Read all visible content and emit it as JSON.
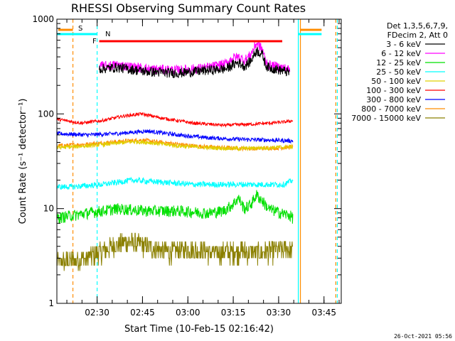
{
  "chart_data": {
    "type": "line",
    "title": "RHESSI Observing Summary Count Rates",
    "xlabel": "Start Time (10-Feb-15 02:16:42)",
    "ylabel": "Count Rate (s⁻¹ detector⁻¹)",
    "yscale": "log",
    "ylim": [
      1,
      1000
    ],
    "xlim_minutes": [
      0,
      94
    ],
    "x_tick_labels": [
      "02:30",
      "02:45",
      "03:00",
      "03:15",
      "03:30",
      "03:45"
    ],
    "x_ticks_minutes": [
      13.3,
      28.3,
      43.3,
      58.3,
      73.3,
      88.3
    ],
    "y_tick_labels": [
      "1",
      "10",
      "100",
      "1000"
    ],
    "y_ticks": [
      1,
      10,
      100,
      1000
    ],
    "grid": false,
    "legend_position": "right",
    "legend_header": [
      "Det 1,3,5,6,7,9,",
      "FDecim 2, Att 0"
    ],
    "timestamp": "26-Oct-2021 05:56",
    "data_window_minutes": [
      14,
      77
    ],
    "series": [
      {
        "name": "3 - 6 keV",
        "color": "#000000",
        "t": [
          14,
          20,
          30,
          40,
          50,
          56,
          58,
          60,
          62,
          64,
          66,
          68,
          69,
          70,
          72,
          74,
          76,
          77
        ],
        "values": [
          300,
          310,
          280,
          270,
          290,
          300,
          330,
          350,
          320,
          360,
          470,
          420,
          330,
          310,
          300,
          290,
          280,
          270
        ]
      },
      {
        "name": "6 - 12 keV",
        "color": "#ff00ff",
        "t": [
          14,
          20,
          30,
          40,
          50,
          56,
          58,
          60,
          62,
          64,
          66,
          68,
          69,
          70,
          72,
          74,
          76,
          77
        ],
        "values": [
          320,
          330,
          300,
          290,
          310,
          340,
          390,
          400,
          370,
          420,
          560,
          480,
          360,
          330,
          320,
          310,
          300,
          290
        ]
      },
      {
        "name": "12 - 25 keV",
        "color": "#00e000",
        "t": [
          0,
          10,
          20,
          30,
          40,
          50,
          55,
          58,
          60,
          62,
          64,
          66,
          68,
          70,
          74,
          77,
          78
        ],
        "values": [
          8,
          9,
          10,
          9.5,
          9.5,
          9,
          9.5,
          11,
          13,
          10,
          11,
          14,
          12,
          10,
          9,
          8.5,
          8
        ]
      },
      {
        "name": "25 - 50 keV",
        "color": "#00ffff",
        "t": [
          0,
          5,
          15,
          25,
          35,
          45,
          55,
          65,
          75,
          78
        ],
        "values": [
          17,
          17,
          18,
          20,
          19,
          18,
          18,
          18,
          18,
          20
        ]
      },
      {
        "name": "50 - 100 keV",
        "color": "#e0d000",
        "t": [
          0,
          10,
          20,
          25,
          30,
          40,
          50,
          60,
          70,
          78
        ],
        "values": [
          44,
          46,
          49,
          51,
          50,
          46,
          44,
          43,
          44,
          45
        ]
      },
      {
        "name": "100 - 300 keV",
        "color": "#ff0000",
        "t": [
          0,
          8,
          15,
          22,
          28,
          35,
          45,
          55,
          65,
          75,
          78
        ],
        "values": [
          88,
          80,
          85,
          95,
          100,
          90,
          80,
          76,
          78,
          82,
          85
        ]
      },
      {
        "name": "300 - 800 keV",
        "color": "#0000ff",
        "t": [
          0,
          10,
          20,
          30,
          40,
          50,
          60,
          70,
          78
        ],
        "values": [
          62,
          60,
          62,
          66,
          60,
          56,
          54,
          53,
          52
        ]
      },
      {
        "name": "800 - 7000 keV",
        "color": "#ff8c00",
        "t": [
          0,
          10,
          20,
          28,
          35,
          45,
          55,
          65,
          75,
          78
        ],
        "values": [
          46,
          48,
          51,
          53,
          50,
          46,
          44,
          43,
          44,
          45
        ]
      },
      {
        "name": "7000 - 15000 keV",
        "color": "#8b8000",
        "t": [
          0,
          10,
          18,
          24,
          30,
          36,
          44,
          52,
          60,
          68,
          76,
          78
        ],
        "values": [
          2.7,
          3,
          4,
          4.5,
          4,
          3.5,
          3.8,
          3.4,
          3.6,
          3.5,
          3.8,
          3.5
        ]
      }
    ],
    "annotations": [
      {
        "label": "S",
        "color": "#ff8c00",
        "t": [
          0,
          5.3
        ]
      },
      {
        "label": "N",
        "color": "#00ffff",
        "t": [
          0,
          13.3
        ]
      },
      {
        "label": "F",
        "color": "#ff0000",
        "t": [
          14,
          74.5
        ]
      }
    ],
    "right_flags": [
      {
        "color": "#ff8c00",
        "t": [
          80.5,
          87.5
        ]
      },
      {
        "color": "#00ffff",
        "t": [
          79.8,
          87.5
        ]
      }
    ],
    "vertical_markers": [
      {
        "color": "#ff8c00",
        "t": 5.3,
        "style": "dashed"
      },
      {
        "color": "#00ffff",
        "t": 13.3,
        "style": "dashed"
      },
      {
        "color": "#00ffff",
        "t": 79.8,
        "style": "solid"
      },
      {
        "color": "#ff8c00",
        "t": 80.5,
        "style": "solid"
      },
      {
        "color": "#ff8c00",
        "t": 92.2,
        "style": "dashed"
      },
      {
        "color": "#00ffff",
        "t": 92.7,
        "style": "dashed"
      }
    ]
  }
}
